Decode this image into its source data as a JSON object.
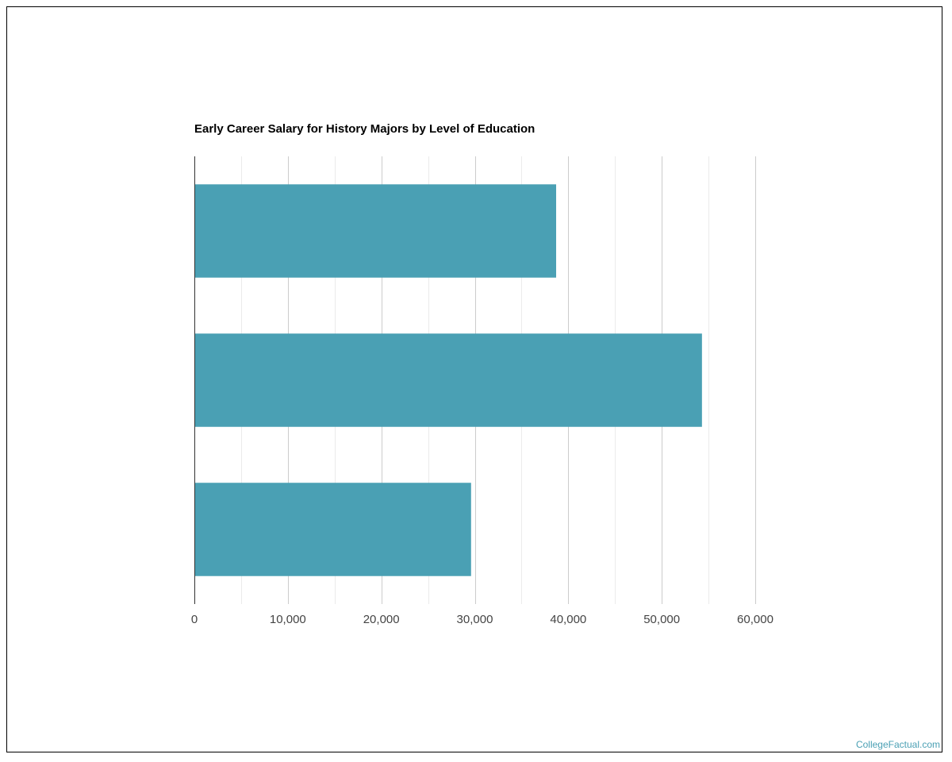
{
  "chart_data": {
    "type": "bar",
    "orientation": "horizontal",
    "title": "Early Career Salary for History Majors by Level of Education",
    "categories": [
      "",
      "",
      ""
    ],
    "values": [
      38700,
      54300,
      29600
    ],
    "xlim": [
      0,
      60000
    ],
    "xticks": [
      0,
      10000,
      20000,
      30000,
      40000,
      50000,
      60000
    ],
    "xtick_labels": [
      "0",
      "10,000",
      "20,000",
      "30,000",
      "40,000",
      "50,000",
      "60,000"
    ],
    "xlabel": "",
    "ylabel": "",
    "grid": true,
    "legend": "none",
    "bar_color": "#4aa0b4"
  },
  "footer": {
    "credit": "CollegeFactual.com",
    "credit_color": "#4aa0b4"
  }
}
